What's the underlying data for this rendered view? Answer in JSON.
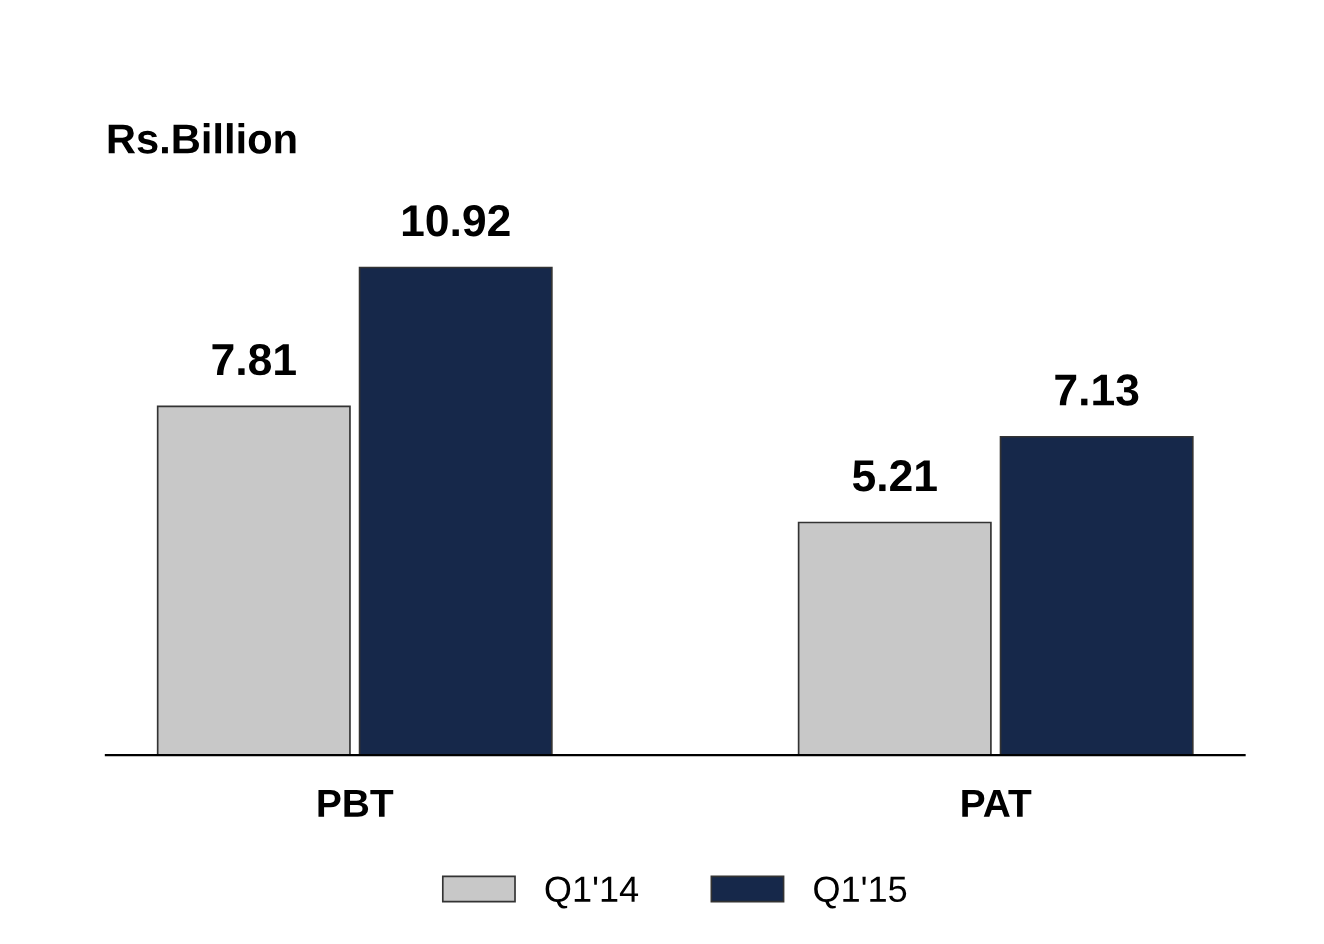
{
  "chart_data": {
    "type": "bar",
    "ylabel": "Rs.Billion",
    "categories": [
      "PBT",
      "PAT"
    ],
    "series": [
      {
        "name": "Q1'14",
        "color": "#c8c8c8",
        "values": [
          7.81,
          5.21
        ]
      },
      {
        "name": "Q1'15",
        "color": "#16284a",
        "values": [
          10.92,
          7.13
        ]
      }
    ],
    "data_labels": true,
    "legend": "bottom",
    "grid": false
  }
}
